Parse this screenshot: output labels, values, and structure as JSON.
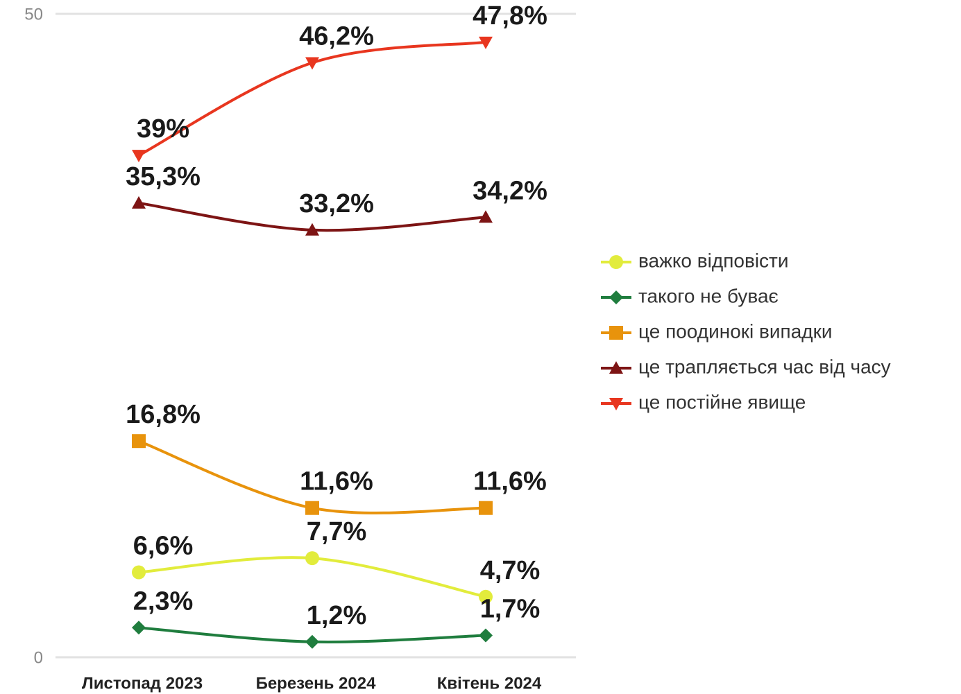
{
  "chart_data": {
    "type": "line",
    "categories": [
      "Листопад 2023",
      "Березень 2024",
      "Квітень 2024"
    ],
    "ylim": [
      0,
      50
    ],
    "yticks": [
      0,
      50
    ],
    "grid": true,
    "legend": "right",
    "series": [
      {
        "name": "важко відповісти",
        "color": "#e2ec3c",
        "marker": "circle",
        "values": [
          6.6,
          7.7,
          4.7
        ],
        "value_labels": [
          "6,6%",
          "7,7%",
          "4,7%"
        ]
      },
      {
        "name": "такого не буває",
        "color": "#1f7d3e",
        "marker": "diamond",
        "values": [
          2.3,
          1.2,
          1.7
        ],
        "value_labels": [
          "2,3%",
          "1,2%",
          "1,7%"
        ]
      },
      {
        "name": "це поодинокі випадки",
        "color": "#e8930c",
        "marker": "square",
        "values": [
          16.8,
          11.6,
          11.6
        ],
        "value_labels": [
          "16,8%",
          "11,6%",
          "11,6%"
        ]
      },
      {
        "name": "це трапляється час від часу",
        "color": "#7d1414",
        "marker": "triangle-up",
        "values": [
          35.3,
          33.2,
          34.2
        ],
        "value_labels": [
          "35,3%",
          "33,2%",
          "34,2%"
        ]
      },
      {
        "name": "це постійне явище",
        "color": "#e8361f",
        "marker": "triangle-down",
        "values": [
          39,
          46.2,
          47.8
        ],
        "value_labels": [
          "39%",
          "46,2%",
          "47,8%"
        ]
      }
    ]
  }
}
